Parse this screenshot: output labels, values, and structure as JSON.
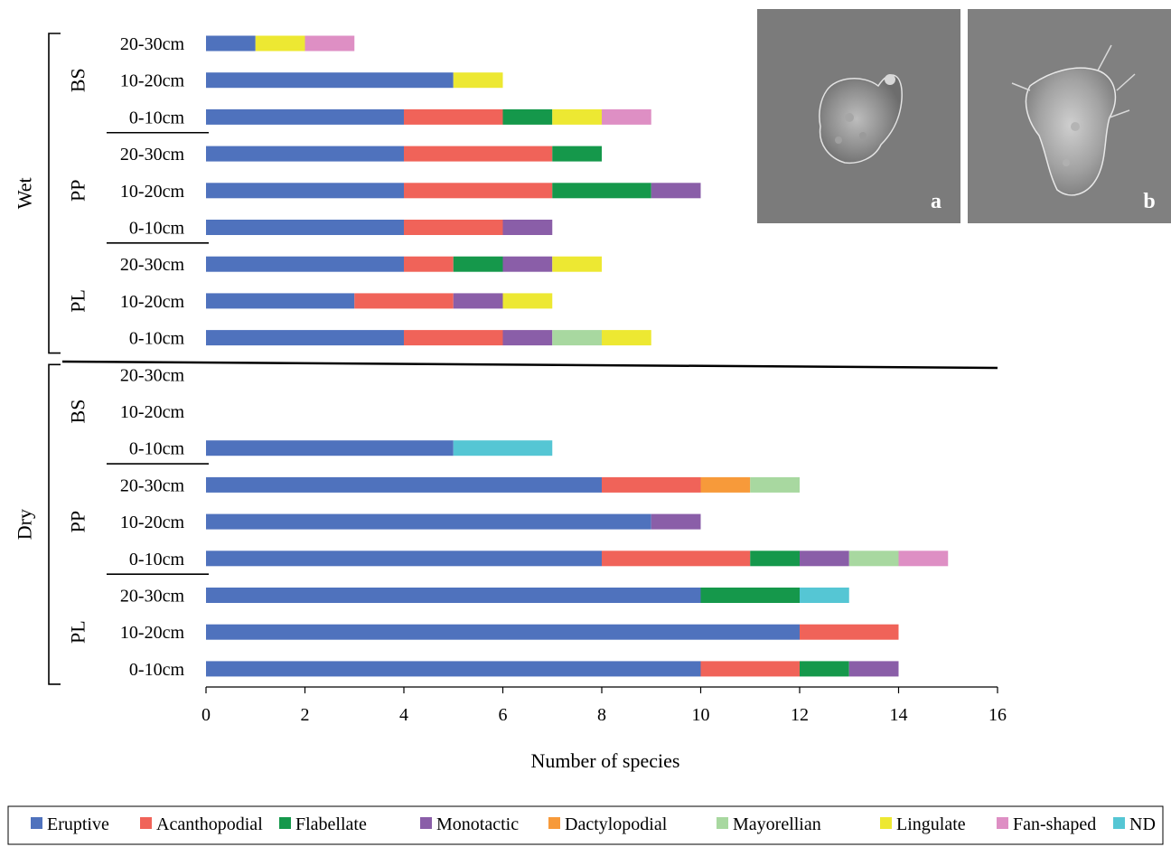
{
  "chart_data": {
    "type": "bar",
    "orientation": "horizontal",
    "stacked": true,
    "xlabel": "Number of species",
    "xlim": [
      0,
      16
    ],
    "xticks": [
      0,
      2,
      4,
      6,
      8,
      10,
      12,
      14,
      16
    ],
    "grid": false,
    "legend_position": "bottom",
    "series": [
      {
        "name": "Eruptive",
        "color": "#4f72bd"
      },
      {
        "name": "Acanthopodial",
        "color": "#f06359"
      },
      {
        "name": "Flabellate",
        "color": "#15984b"
      },
      {
        "name": "Monotactic",
        "color": "#8a5ea8"
      },
      {
        "name": "Dactylopodial",
        "color": "#f79a3a"
      },
      {
        "name": "Mayorellian",
        "color": "#a8d8a0"
      },
      {
        "name": "Lingulate",
        "color": "#ede832"
      },
      {
        "name": "Fan-shaped",
        "color": "#de8fc4"
      },
      {
        "name": "ND",
        "color": "#55c6d4"
      }
    ],
    "seasons": [
      {
        "label": "Wet",
        "groups": [
          {
            "label": "BS",
            "rows": [
              {
                "label": "20-30cm",
                "values": {
                  "Eruptive": 1,
                  "Lingulate": 1,
                  "Fan-shaped": 1
                }
              },
              {
                "label": "10-20cm",
                "values": {
                  "Eruptive": 5,
                  "Lingulate": 1
                }
              },
              {
                "label": "0-10cm",
                "values": {
                  "Eruptive": 4,
                  "Acanthopodial": 2,
                  "Flabellate": 1,
                  "Lingulate": 1,
                  "Fan-shaped": 1
                }
              }
            ]
          },
          {
            "label": "PP",
            "rows": [
              {
                "label": "20-30cm",
                "values": {
                  "Eruptive": 4,
                  "Acanthopodial": 3,
                  "Flabellate": 1
                }
              },
              {
                "label": "10-20cm",
                "values": {
                  "Eruptive": 4,
                  "Acanthopodial": 3,
                  "Flabellate": 2,
                  "Monotactic": 1
                }
              },
              {
                "label": "0-10cm",
                "values": {
                  "Eruptive": 4,
                  "Acanthopodial": 2,
                  "Monotactic": 1
                }
              }
            ]
          },
          {
            "label": "PL",
            "rows": [
              {
                "label": "20-30cm",
                "values": {
                  "Eruptive": 4,
                  "Acanthopodial": 1,
                  "Flabellate": 1,
                  "Monotactic": 1,
                  "Lingulate": 1
                }
              },
              {
                "label": "10-20cm",
                "values": {
                  "Eruptive": 3,
                  "Acanthopodial": 2,
                  "Monotactic": 1,
                  "Lingulate": 1
                }
              },
              {
                "label": "0-10cm",
                "values": {
                  "Eruptive": 4,
                  "Acanthopodial": 2,
                  "Monotactic": 1,
                  "Mayorellian": 1,
                  "Lingulate": 1
                }
              }
            ]
          }
        ]
      },
      {
        "label": "Dry",
        "groups": [
          {
            "label": "BS",
            "rows": [
              {
                "label": "20-30cm",
                "values": {}
              },
              {
                "label": "10-20cm",
                "values": {}
              },
              {
                "label": "0-10cm",
                "values": {
                  "Eruptive": 5,
                  "ND": 2
                }
              }
            ]
          },
          {
            "label": "PP",
            "rows": [
              {
                "label": "20-30cm",
                "values": {
                  "Eruptive": 8,
                  "Acanthopodial": 2,
                  "Dactylopodial": 1,
                  "Mayorellian": 1
                }
              },
              {
                "label": "10-20cm",
                "values": {
                  "Eruptive": 9,
                  "Monotactic": 1
                }
              },
              {
                "label": "0-10cm",
                "values": {
                  "Eruptive": 8,
                  "Acanthopodial": 3,
                  "Flabellate": 1,
                  "Monotactic": 1,
                  "Mayorellian": 1,
                  "Fan-shaped": 1
                }
              }
            ]
          },
          {
            "label": "PL",
            "rows": [
              {
                "label": "20-30cm",
                "values": {
                  "Eruptive": 10,
                  "Flabellate": 2,
                  "ND": 1
                }
              },
              {
                "label": "10-20cm",
                "values": {
                  "Eruptive": 12,
                  "Acanthopodial": 2
                }
              },
              {
                "label": "0-10cm",
                "values": {
                  "Eruptive": 10,
                  "Acanthopodial": 2,
                  "Flabellate": 1,
                  "Monotactic": 1
                }
              }
            ]
          }
        ]
      }
    ]
  },
  "photos": [
    {
      "letter": "a"
    },
    {
      "letter": "b"
    }
  ]
}
